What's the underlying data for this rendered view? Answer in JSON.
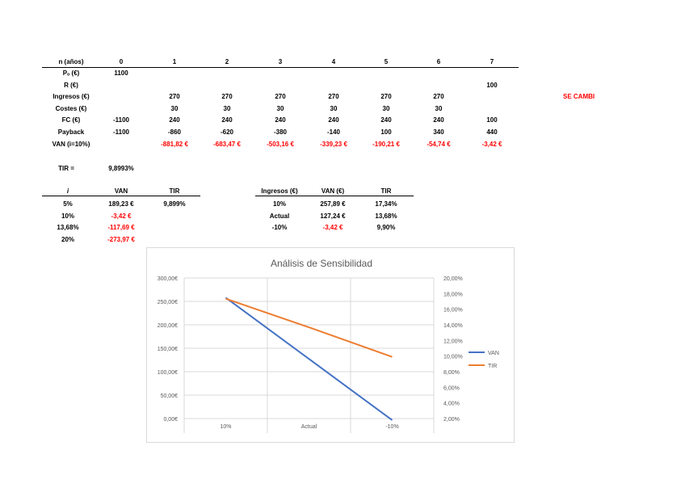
{
  "main_table": {
    "header": [
      "n (años)",
      "0",
      "1",
      "2",
      "3",
      "4",
      "5",
      "6",
      "7"
    ],
    "rows": [
      {
        "label": "Pₒ (€)",
        "values": [
          "1100",
          "",
          "",
          "",
          "",
          "",
          "",
          ""
        ],
        "red_from": 99
      },
      {
        "label": "R (€)",
        "values": [
          "",
          "",
          "",
          "",
          "",
          "",
          "",
          "100"
        ],
        "red_from": 99
      },
      {
        "label": "Ingresos (€)",
        "values": [
          "",
          "270",
          "270",
          "270",
          "270",
          "270",
          "270",
          ""
        ],
        "red_from": 99
      },
      {
        "label": "Costes (€)",
        "values": [
          "",
          "30",
          "30",
          "30",
          "30",
          "30",
          "30",
          ""
        ],
        "red_from": 99
      },
      {
        "label": "FC (€)",
        "values": [
          "-1100",
          "240",
          "240",
          "240",
          "240",
          "240",
          "240",
          "100"
        ],
        "red_from": 99
      },
      {
        "label": "Payback",
        "values": [
          "-1100",
          "-860",
          "-620",
          "-380",
          "-140",
          "100",
          "340",
          "440"
        ],
        "red_from": 99
      },
      {
        "label": "VAN (i=10%)",
        "values": [
          "",
          "-881,82 €",
          "-683,47 €",
          "-503,16 €",
          "-339,23 €",
          "-190,21 €",
          "-54,74 €",
          "-3,42 €"
        ],
        "red_from": 1
      }
    ]
  },
  "note": "SE CAMBI",
  "tir": {
    "label": "TIR =",
    "value": "9,8993%"
  },
  "rate_table": {
    "header": [
      "i",
      "VAN",
      "TIR"
    ],
    "rows": [
      {
        "i": "5%",
        "van": "189,23 €",
        "tir": "9,899%",
        "van_red": false
      },
      {
        "i": "10%",
        "van": "-3,42 €",
        "tir": "",
        "van_red": true
      },
      {
        "i": "13,68%",
        "van": "-117,69 €",
        "tir": "",
        "van_red": true
      },
      {
        "i": "20%",
        "van": "-273,97 €",
        "tir": "",
        "van_red": true
      }
    ]
  },
  "sens_table": {
    "header": [
      "Ingresos (€)",
      "VAN (€)",
      "TIR"
    ],
    "rows": [
      {
        "ingresos": "10%",
        "van": "257,89 €",
        "tir": "17,34%",
        "van_red": false
      },
      {
        "ingresos": "Actual",
        "van": "127,24 €",
        "tir": "13,68%",
        "van_red": false
      },
      {
        "ingresos": "-10%",
        "van": "-3,42 €",
        "tir": "9,90%",
        "van_red": true
      }
    ]
  },
  "chart_data": {
    "type": "line",
    "title": "Análisis de Sensibilidad",
    "categories": [
      "10%",
      "Actual",
      "-10%"
    ],
    "series": [
      {
        "name": "VAN",
        "values": [
          257.89,
          127.24,
          -3.42
        ],
        "color": "#4472c4",
        "axis": "left"
      },
      {
        "name": "TIR",
        "values": [
          17.34,
          13.68,
          9.9
        ],
        "color": "#ed7d31",
        "axis": "right"
      }
    ],
    "y_left": {
      "min": 0,
      "max": 300,
      "step": 50,
      "tick_labels": [
        "0,00€",
        "50,00€",
        "100,00€",
        "150,00€",
        "200,00€",
        "250,00€",
        "300,00€"
      ]
    },
    "y_right": {
      "min": 2,
      "max": 20,
      "step": 2,
      "tick_labels": [
        "2,00%",
        "4,00%",
        "6,00%",
        "8,00%",
        "10,00%",
        "12,00%",
        "14,00%",
        "16,00%",
        "18,00%",
        "20,00%"
      ]
    },
    "grid": true,
    "legend": "right",
    "colors": {
      "axis_text": "#595959",
      "gridline": "#d9d9d9",
      "title": "#595959"
    }
  }
}
